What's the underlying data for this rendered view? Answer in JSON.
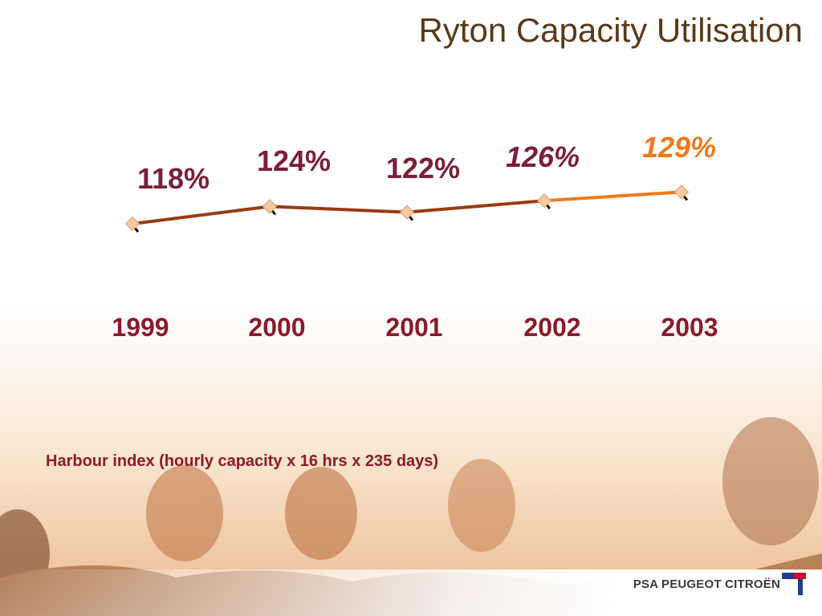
{
  "slide": {
    "title": "Ryton Capacity Utilisation",
    "note": "Harbour index (hourly capacity x 16 hrs x 235 days)",
    "logo_text": "PSA PEUGEOT CITROËN"
  },
  "colors": {
    "line_main": "#9a3a12",
    "line_recent": "#f07a1a",
    "label_main": "#7a2038",
    "label_recent": "#f07a1a",
    "year": "#8b1a2c",
    "marker": "#f6c9a0"
  },
  "chart_data": {
    "type": "line",
    "title": "Ryton Capacity Utilisation",
    "x": [
      "1999",
      "2000",
      "2001",
      "2002",
      "2003"
    ],
    "series": [
      {
        "values": [
          118,
          124,
          122,
          126,
          129
        ]
      }
    ],
    "data_labels": [
      "118%",
      "124%",
      "122%",
      "126%",
      "129%"
    ],
    "ylim": [
      100,
      135
    ],
    "grid": false,
    "legend": "none",
    "xlabel": "",
    "ylabel": ""
  }
}
